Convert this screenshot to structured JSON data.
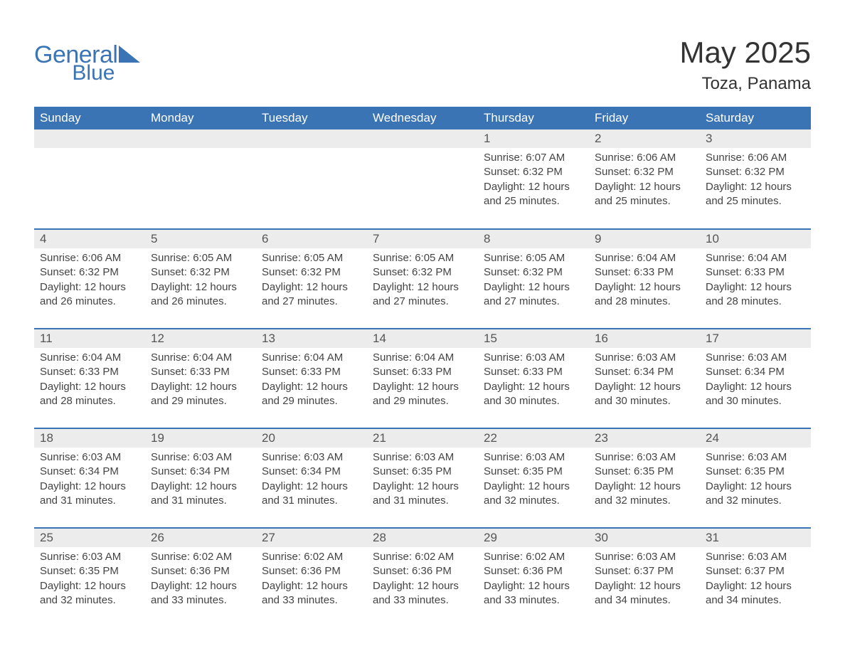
{
  "logo": {
    "general": "General",
    "blue": "Blue"
  },
  "title": "May 2025",
  "location": "Toza, Panama",
  "colors": {
    "header_bg": "#3b74b5",
    "header_text": "#ffffff",
    "daynum_bg": "#ececec",
    "body_text": "#444444",
    "rule": "#3b74b5",
    "page_bg": "#ffffff"
  },
  "typography": {
    "title_fontsize": 42,
    "location_fontsize": 24,
    "th_fontsize": 17,
    "daynum_fontsize": 17,
    "body_fontsize": 15
  },
  "days_of_week": [
    "Sunday",
    "Monday",
    "Tuesday",
    "Wednesday",
    "Thursday",
    "Friday",
    "Saturday"
  ],
  "weeks": [
    [
      null,
      null,
      null,
      null,
      {
        "n": "1",
        "sunrise": "6:07 AM",
        "sunset": "6:32 PM",
        "daylight": "12 hours and 25 minutes."
      },
      {
        "n": "2",
        "sunrise": "6:06 AM",
        "sunset": "6:32 PM",
        "daylight": "12 hours and 25 minutes."
      },
      {
        "n": "3",
        "sunrise": "6:06 AM",
        "sunset": "6:32 PM",
        "daylight": "12 hours and 25 minutes."
      }
    ],
    [
      {
        "n": "4",
        "sunrise": "6:06 AM",
        "sunset": "6:32 PM",
        "daylight": "12 hours and 26 minutes."
      },
      {
        "n": "5",
        "sunrise": "6:05 AM",
        "sunset": "6:32 PM",
        "daylight": "12 hours and 26 minutes."
      },
      {
        "n": "6",
        "sunrise": "6:05 AM",
        "sunset": "6:32 PM",
        "daylight": "12 hours and 27 minutes."
      },
      {
        "n": "7",
        "sunrise": "6:05 AM",
        "sunset": "6:32 PM",
        "daylight": "12 hours and 27 minutes."
      },
      {
        "n": "8",
        "sunrise": "6:05 AM",
        "sunset": "6:32 PM",
        "daylight": "12 hours and 27 minutes."
      },
      {
        "n": "9",
        "sunrise": "6:04 AM",
        "sunset": "6:33 PM",
        "daylight": "12 hours and 28 minutes."
      },
      {
        "n": "10",
        "sunrise": "6:04 AM",
        "sunset": "6:33 PM",
        "daylight": "12 hours and 28 minutes."
      }
    ],
    [
      {
        "n": "11",
        "sunrise": "6:04 AM",
        "sunset": "6:33 PM",
        "daylight": "12 hours and 28 minutes."
      },
      {
        "n": "12",
        "sunrise": "6:04 AM",
        "sunset": "6:33 PM",
        "daylight": "12 hours and 29 minutes."
      },
      {
        "n": "13",
        "sunrise": "6:04 AM",
        "sunset": "6:33 PM",
        "daylight": "12 hours and 29 minutes."
      },
      {
        "n": "14",
        "sunrise": "6:04 AM",
        "sunset": "6:33 PM",
        "daylight": "12 hours and 29 minutes."
      },
      {
        "n": "15",
        "sunrise": "6:03 AM",
        "sunset": "6:33 PM",
        "daylight": "12 hours and 30 minutes."
      },
      {
        "n": "16",
        "sunrise": "6:03 AM",
        "sunset": "6:34 PM",
        "daylight": "12 hours and 30 minutes."
      },
      {
        "n": "17",
        "sunrise": "6:03 AM",
        "sunset": "6:34 PM",
        "daylight": "12 hours and 30 minutes."
      }
    ],
    [
      {
        "n": "18",
        "sunrise": "6:03 AM",
        "sunset": "6:34 PM",
        "daylight": "12 hours and 31 minutes."
      },
      {
        "n": "19",
        "sunrise": "6:03 AM",
        "sunset": "6:34 PM",
        "daylight": "12 hours and 31 minutes."
      },
      {
        "n": "20",
        "sunrise": "6:03 AM",
        "sunset": "6:34 PM",
        "daylight": "12 hours and 31 minutes."
      },
      {
        "n": "21",
        "sunrise": "6:03 AM",
        "sunset": "6:35 PM",
        "daylight": "12 hours and 31 minutes."
      },
      {
        "n": "22",
        "sunrise": "6:03 AM",
        "sunset": "6:35 PM",
        "daylight": "12 hours and 32 minutes."
      },
      {
        "n": "23",
        "sunrise": "6:03 AM",
        "sunset": "6:35 PM",
        "daylight": "12 hours and 32 minutes."
      },
      {
        "n": "24",
        "sunrise": "6:03 AM",
        "sunset": "6:35 PM",
        "daylight": "12 hours and 32 minutes."
      }
    ],
    [
      {
        "n": "25",
        "sunrise": "6:03 AM",
        "sunset": "6:35 PM",
        "daylight": "12 hours and 32 minutes."
      },
      {
        "n": "26",
        "sunrise": "6:02 AM",
        "sunset": "6:36 PM",
        "daylight": "12 hours and 33 minutes."
      },
      {
        "n": "27",
        "sunrise": "6:02 AM",
        "sunset": "6:36 PM",
        "daylight": "12 hours and 33 minutes."
      },
      {
        "n": "28",
        "sunrise": "6:02 AM",
        "sunset": "6:36 PM",
        "daylight": "12 hours and 33 minutes."
      },
      {
        "n": "29",
        "sunrise": "6:02 AM",
        "sunset": "6:36 PM",
        "daylight": "12 hours and 33 minutes."
      },
      {
        "n": "30",
        "sunrise": "6:03 AM",
        "sunset": "6:37 PM",
        "daylight": "12 hours and 34 minutes."
      },
      {
        "n": "31",
        "sunrise": "6:03 AM",
        "sunset": "6:37 PM",
        "daylight": "12 hours and 34 minutes."
      }
    ]
  ],
  "labels": {
    "sunrise": "Sunrise:",
    "sunset": "Sunset:",
    "daylight": "Daylight:"
  }
}
